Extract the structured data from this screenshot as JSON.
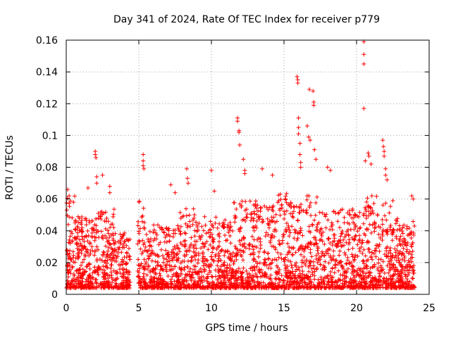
{
  "chart_data": {
    "type": "scatter",
    "title": "Day 341 of 2024, Rate Of TEC Index for receiver p779",
    "xlabel": "GPS time / hours",
    "ylabel": "ROTI / TECUs",
    "xlim": [
      0,
      25
    ],
    "ylim": [
      0,
      0.16
    ],
    "xticks": [
      0,
      5,
      10,
      15,
      20,
      25
    ],
    "xtick_labels": [
      "0",
      "5",
      "10",
      "15",
      "20",
      "25"
    ],
    "yticks": [
      0,
      0.02,
      0.04,
      0.06,
      0.08,
      0.1,
      0.12,
      0.14,
      0.16
    ],
    "ytick_labels": [
      "0",
      "0.02",
      "0.04",
      "0.06",
      "0.08",
      "0.1",
      "0.12",
      "0.14",
      "0.16"
    ],
    "grid": true,
    "marker": "+",
    "marker_color": "#ff0000",
    "series": [
      {
        "name": "ROTI",
        "note": "dense cloud of ~many points between 0.003 and 0.06 TECU across 0-24 h; notable outliers listed",
        "points": [
          [
            0.1,
            0.066
          ],
          [
            0.2,
            0.062
          ],
          [
            0.5,
            0.058
          ],
          [
            1.5,
            0.067
          ],
          [
            2.0,
            0.09
          ],
          [
            2.0,
            0.088
          ],
          [
            2.05,
            0.086
          ],
          [
            2.1,
            0.074
          ],
          [
            2.1,
            0.07
          ],
          [
            2.5,
            0.075
          ],
          [
            3.0,
            0.068
          ],
          [
            3.0,
            0.064
          ],
          [
            5.3,
            0.088
          ],
          [
            5.3,
            0.084
          ],
          [
            5.3,
            0.081
          ],
          [
            5.35,
            0.079
          ],
          [
            7.2,
            0.069
          ],
          [
            7.5,
            0.064
          ],
          [
            8.3,
            0.079
          ],
          [
            8.35,
            0.073
          ],
          [
            8.4,
            0.07
          ],
          [
            10.0,
            0.078
          ],
          [
            10.2,
            0.065
          ],
          [
            11.8,
            0.111
          ],
          [
            11.8,
            0.109
          ],
          [
            11.9,
            0.103
          ],
          [
            11.9,
            0.102
          ],
          [
            11.95,
            0.094
          ],
          [
            12.2,
            0.085
          ],
          [
            12.3,
            0.078
          ],
          [
            12.3,
            0.076
          ],
          [
            13.5,
            0.079
          ],
          [
            14.2,
            0.075
          ],
          [
            15.9,
            0.137
          ],
          [
            15.95,
            0.135
          ],
          [
            15.95,
            0.133
          ],
          [
            16.0,
            0.111
          ],
          [
            16.0,
            0.105
          ],
          [
            16.0,
            0.101
          ],
          [
            16.1,
            0.095
          ],
          [
            16.1,
            0.088
          ],
          [
            16.15,
            0.083
          ],
          [
            16.15,
            0.08
          ],
          [
            16.6,
            0.106
          ],
          [
            16.7,
            0.099
          ],
          [
            16.8,
            0.097
          ],
          [
            16.75,
            0.129
          ],
          [
            17.0,
            0.128
          ],
          [
            17.05,
            0.121
          ],
          [
            17.05,
            0.119
          ],
          [
            17.1,
            0.091
          ],
          [
            17.2,
            0.085
          ],
          [
            18.0,
            0.08
          ],
          [
            18.2,
            0.078
          ],
          [
            20.5,
            0.159
          ],
          [
            20.5,
            0.151
          ],
          [
            20.5,
            0.145
          ],
          [
            20.5,
            0.117
          ],
          [
            20.6,
            0.084
          ],
          [
            20.8,
            0.089
          ],
          [
            20.85,
            0.087
          ],
          [
            21.0,
            0.082
          ],
          [
            21.8,
            0.097
          ],
          [
            21.85,
            0.093
          ],
          [
            21.9,
            0.09
          ],
          [
            21.9,
            0.087
          ],
          [
            22.0,
            0.079
          ],
          [
            22.0,
            0.075
          ],
          [
            22.1,
            0.072
          ],
          [
            23.8,
            0.062
          ],
          [
            23.9,
            0.06
          ]
        ]
      }
    ]
  }
}
